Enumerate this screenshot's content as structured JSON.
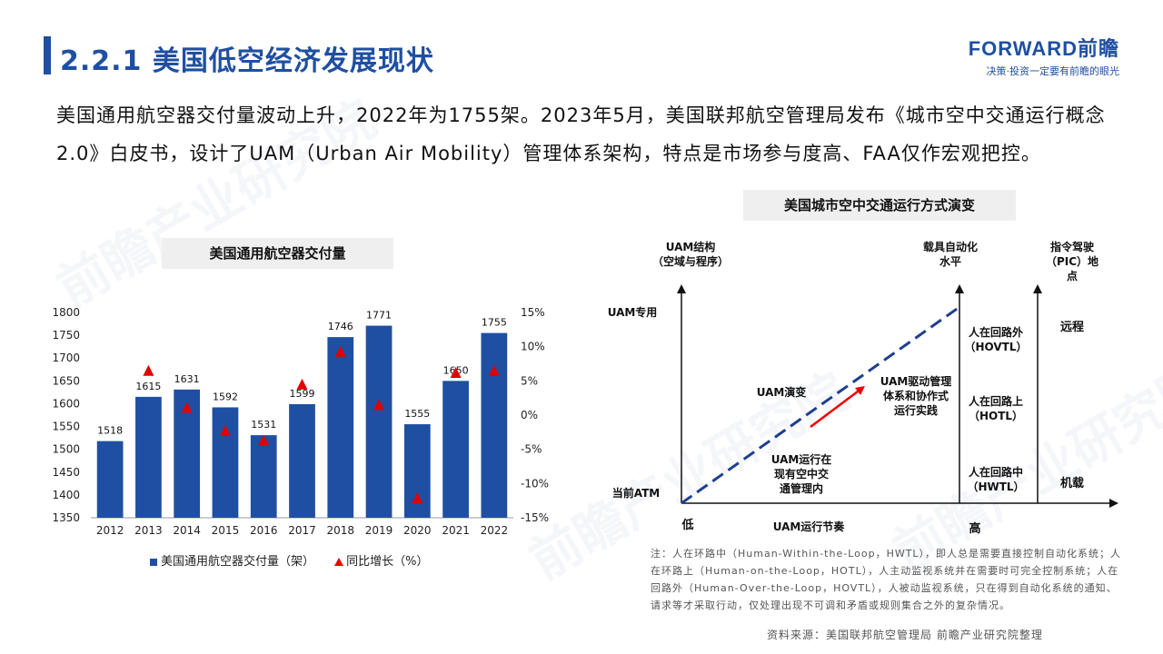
{
  "header": {
    "title": "2.2.1 美国低空经济发展现状",
    "logo_main": "FORWARD前瞻",
    "logo_tagline": "决策·投资一定要有前瞻的眼光"
  },
  "intro_text": "美国通用航空器交付量波动上升，2022年为1755架。2023年5月，美国联邦航空管理局发布《城市空中交通运行概念2.0》白皮书，设计了UAM（Urban Air Mobility）管理体系架构，特点是市场参与度高、FAA仅作宏观把控。",
  "chart_data": {
    "type": "bar",
    "title": "美国通用航空器交付量",
    "categories": [
      "2012",
      "2013",
      "2014",
      "2015",
      "2016",
      "2017",
      "2018",
      "2019",
      "2020",
      "2021",
      "2022"
    ],
    "series": [
      {
        "name": "美国通用航空器交付量（架）",
        "type": "bar",
        "axis": "left",
        "values": [
          1518,
          1615,
          1631,
          1592,
          1531,
          1599,
          1746,
          1771,
          1555,
          1650,
          1755
        ]
      },
      {
        "name": "同比增长（%）",
        "type": "marker",
        "axis": "right",
        "values": [
          null,
          6.4,
          1.0,
          -2.4,
          -3.8,
          4.4,
          9.2,
          1.4,
          -12.2,
          6.1,
          6.4
        ]
      }
    ],
    "ylim": [
      1350,
      1800
    ],
    "yticks": [
      1350,
      1400,
      1450,
      1500,
      1550,
      1600,
      1650,
      1700,
      1750,
      1800
    ],
    "y2lim": [
      -15,
      15
    ],
    "y2ticks": [
      "15%",
      "10%",
      "5%",
      "0%",
      "-5%",
      "-10%",
      "-15%"
    ],
    "grid": false,
    "legend_position": "bottom",
    "colors": {
      "bar": "#1f4fa2",
      "marker": "#e00000"
    }
  },
  "diagram": {
    "title": "美国城市空中交通运行方式演变",
    "axis_y_left": "UAM结构\n（空域与程序）",
    "axis_y_mid": "载具自动化\n水平",
    "axis_y_right": "指令驾驶\n（PIC）地\n点",
    "y_top_label": "UAM专用",
    "y_bottom_label": "当前ATM",
    "x_low": "低",
    "x_high": "高",
    "x_axis_label": "UAM运行节奏",
    "label_evolution": "UAM演变",
    "label_start": "UAM运行在\n现有空中交\n通管理内",
    "label_target": "UAM驱动管理\n体系和协作式\n运行实践",
    "automation_levels": [
      "人在回路外\n（HOVTL）",
      "人在回路上\n（HOTL）",
      "人在回路中\n（HWTL）"
    ],
    "pic_locations": [
      "远程",
      "机载"
    ]
  },
  "note": "注：人在环路中（Human-Within-the-Loop，HWTL），即人总是需要直接控制自动化系统；人在环路上（Human-on-the-Loop，HOTL），人主动监视系统并在需要时可完全控制系统；人在回路外（Human-Over-the-Loop，HOVTL），人被动监视系统，只在得到自动化系统的通知、请求等才采取行动，仅处理出现不可调和矛盾或规则集合之外的复杂情况。",
  "source": "资料来源：美国联邦航空管理局 前瞻产业研究院整理",
  "watermark_text": "前瞻产业研究院"
}
